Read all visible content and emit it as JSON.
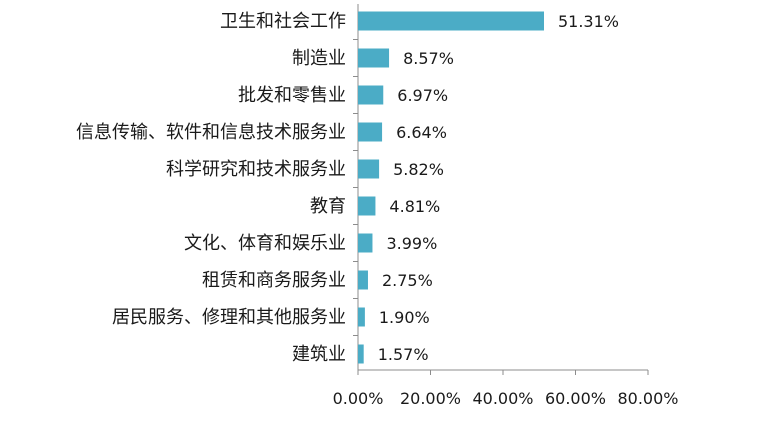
{
  "chart_data": {
    "type": "bar",
    "orientation": "horizontal",
    "categories": [
      "卫生和社会工作",
      "制造业",
      "批发和零售业",
      "信息传输、软件和信息技术服务业",
      "科学研究和技术服务业",
      "教育",
      "文化、体育和娱乐业",
      "租赁和商务服务业",
      "居民服务、修理和其他服务业",
      "建筑业"
    ],
    "values": [
      51.31,
      8.57,
      6.97,
      6.64,
      5.82,
      4.81,
      3.99,
      2.75,
      1.9,
      1.57
    ],
    "data_labels": [
      "51.31%",
      "8.57%",
      "6.97%",
      "6.64%",
      "5.82%",
      "4.81%",
      "3.99%",
      "2.75%",
      "1.90%",
      "1.57%"
    ],
    "xlim": [
      0,
      80
    ],
    "x_ticks": [
      0,
      20,
      40,
      60,
      80
    ],
    "x_tick_labels": [
      "0.00%",
      "20.00%",
      "40.00%",
      "60.00%",
      "80.00%"
    ],
    "bar_color": "#4bacc6",
    "grid": false,
    "legend": "none"
  }
}
